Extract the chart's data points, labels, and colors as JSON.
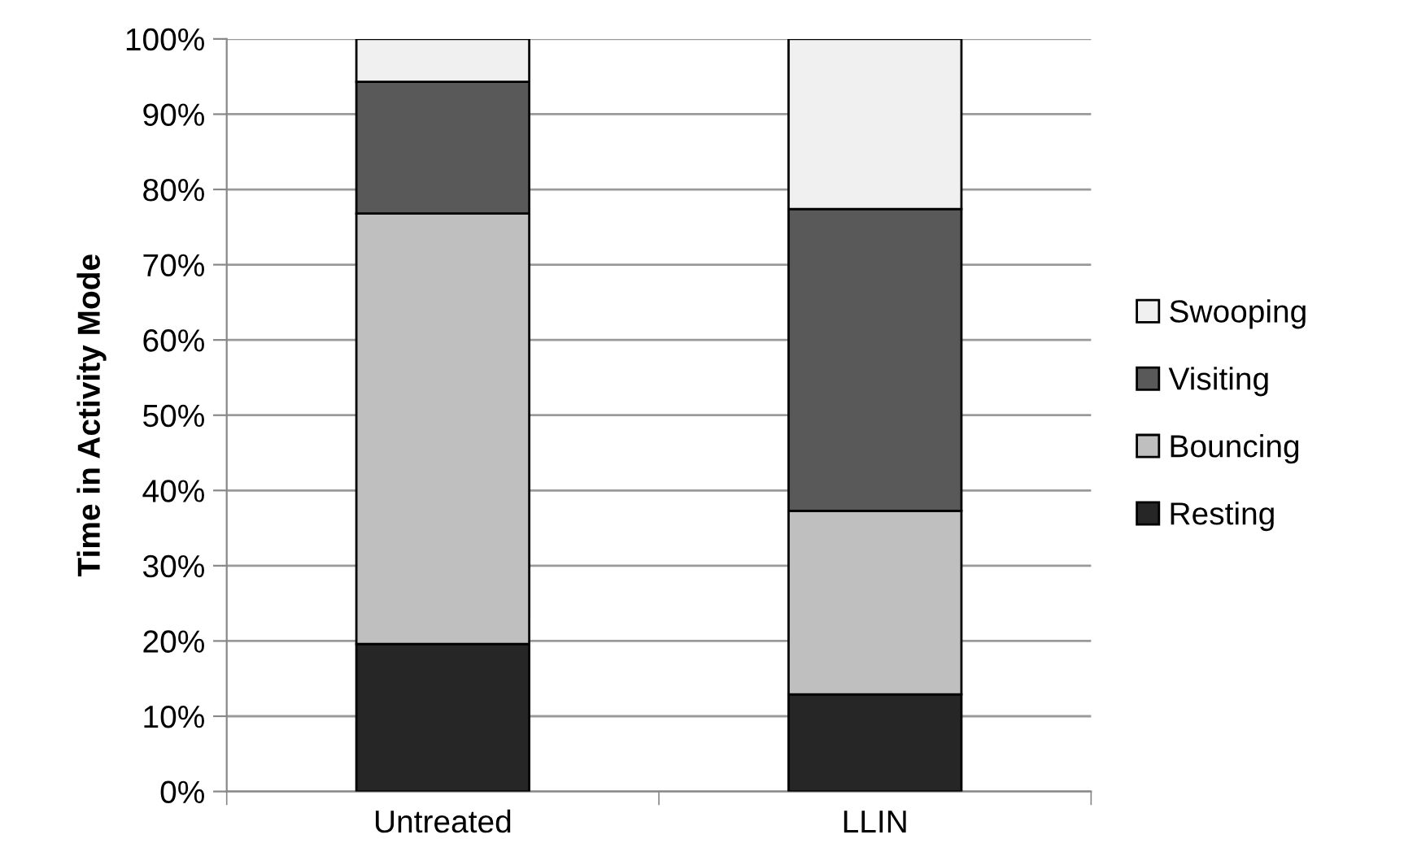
{
  "chart_data": {
    "type": "bar",
    "stacked": true,
    "ylabel": "Time in Activity Mode",
    "categories": [
      "Untreated",
      "LLIN"
    ],
    "series": [
      {
        "name": "Resting",
        "color": "#262626",
        "values": [
          19.6,
          12.9
        ]
      },
      {
        "name": "Bouncing",
        "color": "#bfbfbf",
        "values": [
          57.2,
          24.4
        ]
      },
      {
        "name": "Visiting",
        "color": "#595959",
        "values": [
          17.5,
          40.1
        ]
      },
      {
        "name": "Swooping",
        "color": "#f0f0f0",
        "values": [
          5.7,
          22.6
        ]
      }
    ],
    "ylim": [
      0,
      100
    ],
    "yticks": [
      {
        "value": 0,
        "label": "0%"
      },
      {
        "value": 10,
        "label": "10%"
      },
      {
        "value": 20,
        "label": "20%"
      },
      {
        "value": 30,
        "label": "30%"
      },
      {
        "value": 40,
        "label": "40%"
      },
      {
        "value": 50,
        "label": "50%"
      },
      {
        "value": 60,
        "label": "60%"
      },
      {
        "value": 70,
        "label": "70%"
      },
      {
        "value": 80,
        "label": "80%"
      },
      {
        "value": 90,
        "label": "90%"
      },
      {
        "value": 100,
        "label": "100%"
      }
    ],
    "grid": "y",
    "legend": "right"
  }
}
